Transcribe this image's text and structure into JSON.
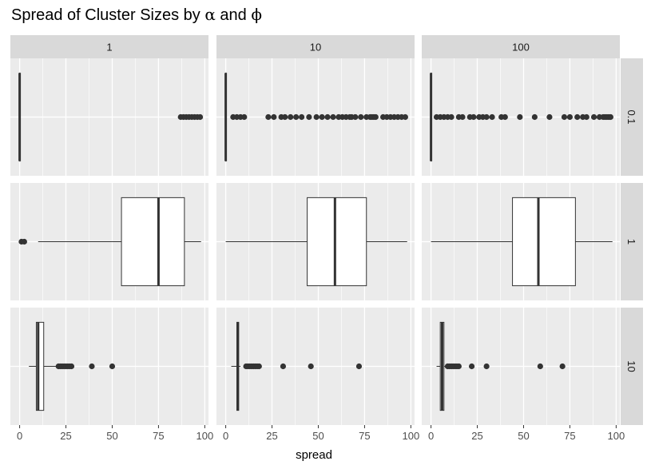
{
  "chart_data": {
    "type": "boxplot",
    "title_prefix": "Spread of Cluster Sizes by ",
    "title_alpha": "α",
    "title_mid": " and ",
    "title_phi": "ϕ",
    "xlabel": "spread",
    "ylabel": "",
    "xlim": [
      -5,
      102
    ],
    "x_ticks": [
      0,
      25,
      50,
      75,
      100
    ],
    "col_facets": [
      "1",
      "10",
      "100"
    ],
    "row_facets": [
      "0.1",
      "1",
      "10"
    ],
    "grid": true,
    "colors": {
      "panel_bg": "#ebebeb",
      "grid": "#ffffff",
      "strip_bg": "#d9d9d9",
      "box_line": "#333333",
      "box_fill": "#ffffff",
      "outlier": "#333333"
    },
    "panels": [
      {
        "row": "0.1",
        "col": "1",
        "min": 0,
        "q1": 0,
        "median": 0,
        "q3": 0,
        "max": 0,
        "outliers": [
          87,
          88.5,
          90,
          91.5,
          93,
          94.5,
          96,
          97.5
        ]
      },
      {
        "row": "0.1",
        "col": "10",
        "min": 0,
        "q1": 0,
        "median": 0,
        "q3": 0,
        "max": 0,
        "outliers": [
          4,
          6,
          8,
          10,
          23,
          26,
          30,
          32,
          35,
          38,
          41,
          45,
          49,
          52,
          55,
          58,
          61,
          63,
          65,
          67,
          68,
          70,
          73,
          76,
          78,
          79,
          80,
          81,
          85,
          87,
          89,
          91,
          93,
          95,
          97
        ]
      },
      {
        "row": "0.1",
        "col": "100",
        "min": 0,
        "q1": 0,
        "median": 0,
        "q3": 0,
        "max": 0,
        "outliers": [
          3,
          5,
          7,
          9,
          11,
          15,
          17,
          21,
          23,
          26,
          28,
          30,
          33,
          38,
          40,
          48,
          56,
          64,
          72,
          75,
          79,
          82,
          84,
          88,
          91,
          93,
          94,
          95,
          96,
          97
        ]
      },
      {
        "row": "1",
        "col": "1",
        "min": 10,
        "q1": 55,
        "median": 75,
        "q3": 89,
        "max": 98,
        "outliers": [
          1,
          2.5
        ]
      },
      {
        "row": "1",
        "col": "10",
        "min": 0,
        "q1": 44,
        "median": 59,
        "q3": 76,
        "max": 98,
        "outliers": []
      },
      {
        "row": "1",
        "col": "100",
        "min": 0,
        "q1": 44,
        "median": 58,
        "q3": 78,
        "max": 98,
        "outliers": []
      },
      {
        "row": "10",
        "col": "1",
        "min": 5,
        "q1": 9,
        "median": 10,
        "q3": 13,
        "max": 20,
        "outliers": [
          21,
          22,
          23,
          24,
          25,
          26,
          27,
          28,
          39,
          50
        ]
      },
      {
        "row": "10",
        "col": "10",
        "min": 3,
        "q1": 6,
        "median": 6.5,
        "q3": 7,
        "max": 8,
        "outliers": [
          11,
          12,
          13,
          14,
          15,
          16,
          17,
          18,
          31,
          46,
          72
        ]
      },
      {
        "row": "10",
        "col": "100",
        "min": 3,
        "q1": 5,
        "median": 6,
        "q3": 7,
        "max": 7.5,
        "outliers": [
          9,
          10,
          11,
          12,
          13,
          14,
          15,
          22,
          30,
          59,
          71
        ]
      }
    ]
  }
}
